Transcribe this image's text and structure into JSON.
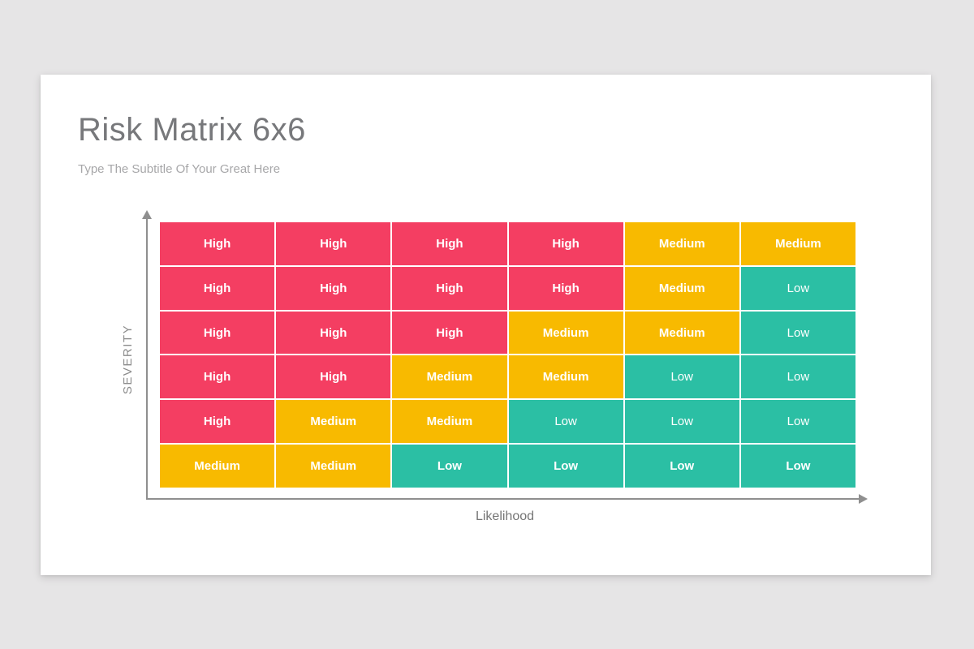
{
  "slide": {
    "title": "Risk Matrix 6x6",
    "subtitle": "Type The Subtitle Of Your Great Here"
  },
  "colors": {
    "high": "#f43e62",
    "medium": "#f8ba00",
    "low": "#2bbfa4",
    "cell_text": "#ffffff",
    "axis": "#8f8f8f",
    "card_background": "#ffffff",
    "page_background": "#e6e5e6"
  },
  "chart_data": {
    "type": "heatmap",
    "title": "Risk Matrix 6x6",
    "xlabel": "Likelihood",
    "ylabel": "SEVERITY",
    "grid_size": "6x6",
    "legend_position": "none",
    "rows_top_to_bottom": [
      [
        "High",
        "High",
        "High",
        "High",
        "Medium",
        "Medium"
      ],
      [
        "High",
        "High",
        "High",
        "High",
        "Medium",
        "Low"
      ],
      [
        "High",
        "High",
        "High",
        "Medium",
        "Medium",
        "Low"
      ],
      [
        "High",
        "High",
        "Medium",
        "Medium",
        "Low",
        "Low"
      ],
      [
        "High",
        "Medium",
        "Medium",
        "Low",
        "Low",
        "Low"
      ],
      [
        "Medium",
        "Medium",
        "Low",
        "Low",
        "Low",
        "Low"
      ]
    ],
    "bold_flags": [
      [
        true,
        true,
        true,
        true,
        true,
        true
      ],
      [
        true,
        true,
        true,
        true,
        true,
        false
      ],
      [
        true,
        true,
        true,
        true,
        true,
        false
      ],
      [
        true,
        true,
        true,
        true,
        false,
        false
      ],
      [
        true,
        true,
        true,
        false,
        false,
        false
      ],
      [
        true,
        true,
        true,
        true,
        true,
        true
      ]
    ]
  }
}
